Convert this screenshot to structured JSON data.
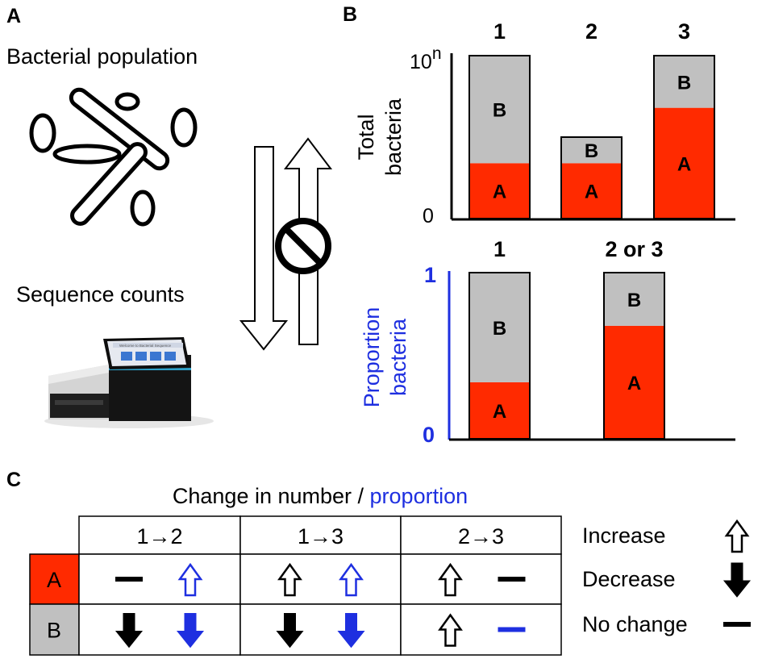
{
  "panels": {
    "a": "A",
    "b": "B",
    "c": "C"
  },
  "panel_a": {
    "population_label": "Bacterial population",
    "sequence_label": "Sequence counts",
    "sequencer_screen_title": "Welcome to Bacterial Sequence"
  },
  "panel_b": {
    "top_y_label_line1": "Total",
    "top_y_label_line2": "bacteria",
    "top_y_max_base": "10",
    "top_y_max_exp": "n",
    "top_y_min": "0",
    "bottom_y_label_line1": "Proportion",
    "bottom_y_label_line2": "bacteria",
    "bottom_y_max": "1",
    "bottom_y_min": "0",
    "bottom_axis_color": "#1e2fe0"
  },
  "chart_data": [
    {
      "type": "bar",
      "stacked": true,
      "title": "",
      "ylabel": "Total bacteria",
      "ylim": [
        0,
        1
      ],
      "categories": [
        "1",
        "2",
        "3"
      ],
      "series": [
        {
          "name": "A",
          "values": [
            0.34,
            0.34,
            0.68
          ],
          "color": "#ff2a00"
        },
        {
          "name": "B",
          "values": [
            0.66,
            0.16,
            0.32
          ],
          "color": "#c0c0c0"
        }
      ]
    },
    {
      "type": "bar",
      "stacked": true,
      "title": "",
      "ylabel": "Proportion bacteria",
      "ylim": [
        0,
        1
      ],
      "categories": [
        "1",
        "2 or 3"
      ],
      "series": [
        {
          "name": "A",
          "values": [
            0.34,
            0.68
          ],
          "color": "#ff2a00"
        },
        {
          "name": "B",
          "values": [
            0.66,
            0.32
          ],
          "color": "#c0c0c0"
        }
      ]
    }
  ],
  "panel_c": {
    "title_prefix": "Change in number / ",
    "title_highlight": "proportion",
    "columns": [
      "1→2",
      "1→3",
      "2→3"
    ],
    "rows": [
      {
        "label": "A",
        "color": "#ff2a00",
        "cells": [
          [
            "none",
            "up-blue"
          ],
          [
            "up",
            "up-blue"
          ],
          [
            "up",
            "none"
          ]
        ]
      },
      {
        "label": "B",
        "color": "#c0c0c0",
        "cells": [
          [
            "down",
            "down-blue"
          ],
          [
            "down",
            "down-blue"
          ],
          [
            "up",
            "none-blue"
          ]
        ]
      }
    ],
    "legend": [
      {
        "label": "Increase",
        "icon": "arrow-up-outline-icon"
      },
      {
        "label": "Decrease",
        "icon": "arrow-down-filled-icon"
      },
      {
        "label": "No change",
        "icon": "dash-icon"
      }
    ]
  },
  "colors": {
    "black": "#000000",
    "blue": "#1e2fe0",
    "red": "#ff2a00",
    "gray": "#c0c0c0"
  }
}
